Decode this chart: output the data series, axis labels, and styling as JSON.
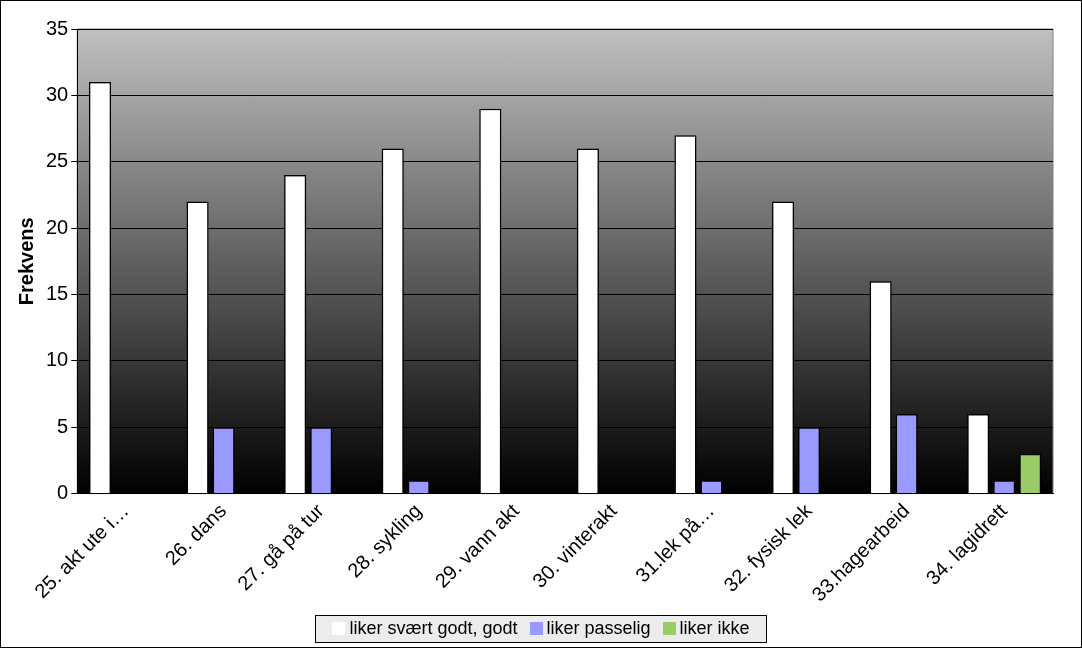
{
  "chart_data": {
    "type": "bar",
    "ylabel": "Frekvens",
    "categories": [
      "25. akt ute i…",
      "26. dans",
      "27. gå på tur",
      "28. sykling",
      "29. vann akt",
      "30. vinterakt",
      "31.lek på…",
      "32. fysisk lek",
      "33.hagearbeid",
      "34. lagidrett"
    ],
    "series": [
      {
        "name": "liker svært godt, godt",
        "color": "#ffffff",
        "values": [
          31,
          22,
          24,
          26,
          29,
          26,
          27,
          22,
          16,
          6
        ]
      },
      {
        "name": "liker passelig",
        "color": "#9999ff",
        "values": [
          0,
          5,
          5,
          1,
          0,
          0,
          1,
          5,
          6,
          1
        ]
      },
      {
        "name": "liker ikke",
        "color": "#99cc66",
        "values": [
          0,
          0,
          0,
          0,
          0,
          0,
          0,
          0,
          0,
          3
        ]
      }
    ],
    "ylim": [
      0,
      35
    ],
    "yticks": [
      0,
      5,
      10,
      15,
      20,
      25,
      30,
      35
    ],
    "grid": "y",
    "legend": "bottom"
  }
}
